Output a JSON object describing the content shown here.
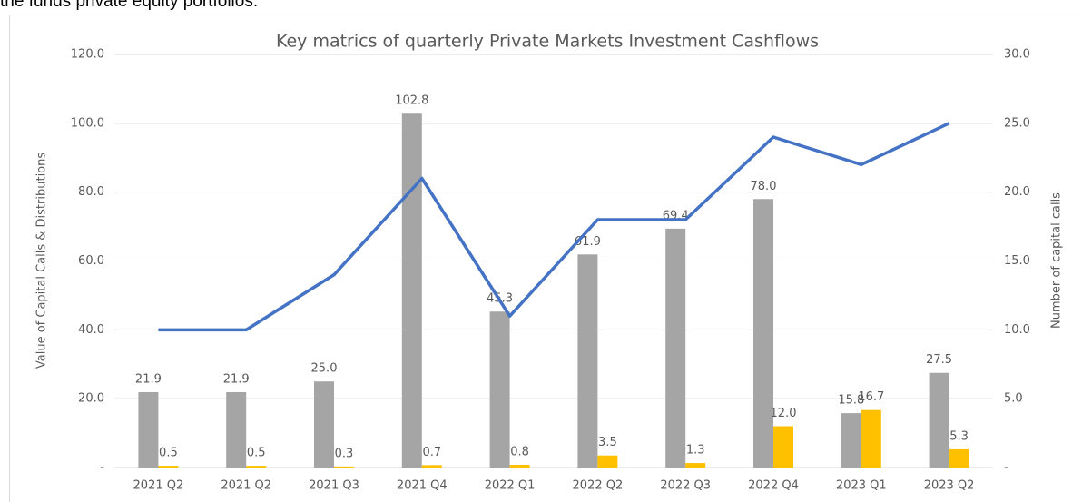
{
  "caption": "the funds private equity portfolios.",
  "chart_data": {
    "type": "bar-line",
    "title": "Key matrics of quarterly Private Markets Investment Cashflows",
    "ylabel": "Value of Capital Calls & Distributions",
    "y2label": "Number of capital calls",
    "categories": [
      "2021 Q2",
      "2021 Q2",
      "2021 Q3",
      "2021 Q4",
      "2022 Q1",
      "2022 Q2",
      "2022 Q3",
      "2022 Q4",
      "2023 Q1",
      "2023 Q2"
    ],
    "series": [
      {
        "type": "bar",
        "color": "#a5a5a5",
        "values": [
          21.9,
          21.9,
          25.0,
          102.8,
          45.3,
          61.9,
          69.4,
          78.0,
          15.8,
          27.5
        ],
        "value_labels": [
          "21.9",
          "21.9",
          "25.0",
          "102.8",
          "45.3",
          "61.9",
          "69.4",
          "78.0",
          "15.8",
          "27.5"
        ]
      },
      {
        "type": "bar",
        "color": "#ffc000",
        "values": [
          0.5,
          0.5,
          0.3,
          0.7,
          0.8,
          3.5,
          1.3,
          12.0,
          16.7,
          5.3
        ],
        "value_labels": [
          "0.5",
          "0.5",
          "0.3",
          "0.7",
          "0.8",
          "3.5",
          "1.3",
          "12.0",
          "16.7",
          "5.3"
        ]
      },
      {
        "type": "line",
        "axis": "y2",
        "color": "#4472c4",
        "values": [
          10,
          10,
          14,
          21,
          11,
          18,
          18,
          24,
          22,
          25
        ]
      }
    ],
    "ylim": [
      0,
      120
    ],
    "yticks": [
      {
        "value": 0,
        "label": "-"
      },
      {
        "value": 20,
        "label": "20.0"
      },
      {
        "value": 40,
        "label": "40.0"
      },
      {
        "value": 60,
        "label": "60.0"
      },
      {
        "value": 80,
        "label": "80.0"
      },
      {
        "value": 100,
        "label": "100.0"
      },
      {
        "value": 120,
        "label": "120.0"
      }
    ],
    "y2lim": [
      0,
      30
    ],
    "y2ticks": [
      {
        "value": 0,
        "label": "-"
      },
      {
        "value": 5,
        "label": "5.0"
      },
      {
        "value": 10,
        "label": "10.0"
      },
      {
        "value": 15,
        "label": "15.0"
      },
      {
        "value": 20,
        "label": "20.0"
      },
      {
        "value": 25,
        "label": "25.0"
      },
      {
        "value": 30,
        "label": "30.0"
      }
    ],
    "grid": true
  }
}
